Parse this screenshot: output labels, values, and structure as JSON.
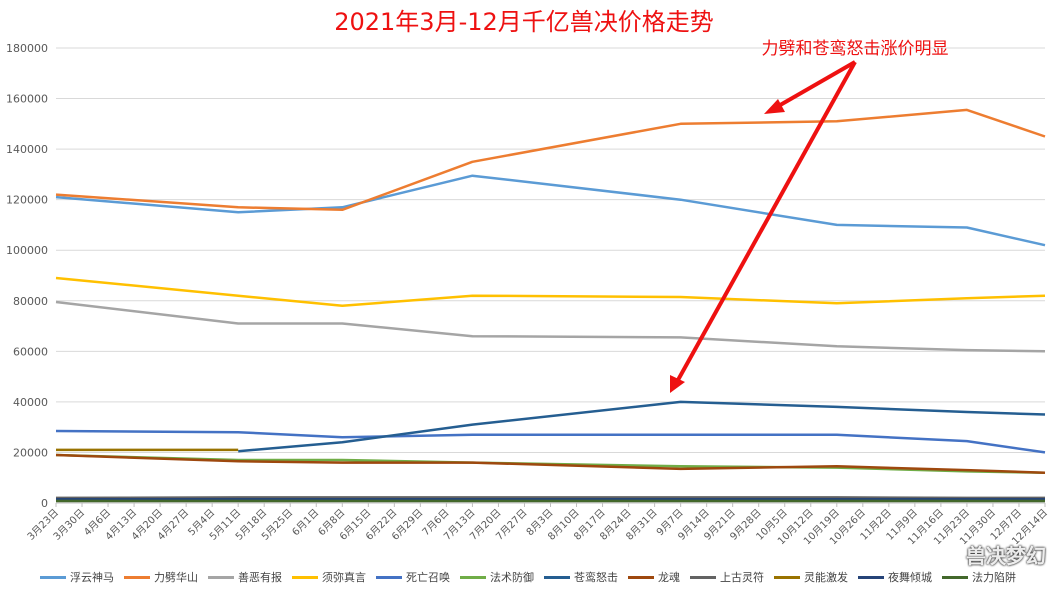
{
  "chart_data": {
    "type": "line",
    "title": "2021年3月-12月千亿兽决价格走势",
    "annotation": "力劈和苍鸾怒击涨价明显",
    "xlabel": "",
    "ylabel": "",
    "ylim": [
      0,
      180000
    ],
    "yticks": [
      0,
      20000,
      40000,
      60000,
      80000,
      100000,
      120000,
      140000,
      160000,
      180000
    ],
    "grid": true,
    "legend_position": "bottom",
    "categories": [
      "3月23日",
      "3月30日",
      "4月6日",
      "4月13日",
      "4月20日",
      "4月27日",
      "5月4日",
      "5月11日",
      "5月18日",
      "5月25日",
      "6月1日",
      "6月8日",
      "6月15日",
      "6月22日",
      "6月29日",
      "7月6日",
      "7月13日",
      "7月20日",
      "7月27日",
      "8月3日",
      "8月10日",
      "8月17日",
      "8月24日",
      "8月31日",
      "9月7日",
      "9月14日",
      "9月21日",
      "9月28日",
      "10月5日",
      "10月12日",
      "10月19日",
      "10月26日",
      "11月2日",
      "11月9日",
      "11月16日",
      "11月23日",
      "11月30日",
      "12月7日",
      "12月14日"
    ],
    "series": [
      {
        "name": "浮云神马",
        "color": "#5B9BD5",
        "values": [
          121000,
          null,
          null,
          null,
          null,
          null,
          null,
          115000,
          null,
          null,
          null,
          117000,
          null,
          null,
          null,
          null,
          129500,
          null,
          null,
          null,
          null,
          null,
          null,
          null,
          120000,
          null,
          null,
          null,
          null,
          null,
          110000,
          null,
          null,
          null,
          null,
          109000,
          null,
          null,
          102000
        ]
      },
      {
        "name": "力劈华山",
        "color": "#ED7D31",
        "values": [
          122000,
          null,
          null,
          null,
          null,
          null,
          null,
          117000,
          null,
          null,
          null,
          116000,
          null,
          null,
          null,
          null,
          135000,
          null,
          null,
          null,
          null,
          null,
          null,
          null,
          150000,
          null,
          null,
          null,
          null,
          null,
          151000,
          null,
          null,
          null,
          null,
          155500,
          null,
          null,
          145000
        ]
      },
      {
        "name": "善恶有报",
        "color": "#A5A5A5",
        "values": [
          79500,
          null,
          null,
          null,
          null,
          null,
          null,
          71000,
          null,
          null,
          null,
          71000,
          null,
          null,
          null,
          null,
          66000,
          null,
          null,
          null,
          null,
          null,
          null,
          null,
          65500,
          null,
          null,
          null,
          null,
          null,
          62000,
          null,
          null,
          null,
          null,
          60500,
          null,
          null,
          60000
        ]
      },
      {
        "name": "须弥真言",
        "color": "#FFC000",
        "values": [
          89000,
          null,
          null,
          null,
          null,
          null,
          null,
          82000,
          null,
          null,
          null,
          78000,
          null,
          null,
          null,
          null,
          82000,
          null,
          null,
          null,
          null,
          null,
          null,
          null,
          81500,
          null,
          null,
          null,
          null,
          null,
          79000,
          null,
          null,
          null,
          null,
          81000,
          null,
          null,
          82000
        ]
      },
      {
        "name": "死亡召唤",
        "color": "#4472C4",
        "values": [
          28500,
          null,
          null,
          null,
          null,
          null,
          null,
          28000,
          null,
          null,
          null,
          26000,
          null,
          null,
          null,
          null,
          27000,
          null,
          null,
          null,
          null,
          null,
          null,
          null,
          27000,
          null,
          null,
          null,
          null,
          null,
          27000,
          null,
          null,
          null,
          null,
          24500,
          null,
          null,
          20000
        ]
      },
      {
        "name": "法术防御",
        "color": "#70AD47",
        "values": [
          19000,
          null,
          null,
          null,
          null,
          null,
          null,
          17000,
          null,
          null,
          null,
          17000,
          null,
          null,
          null,
          null,
          16000,
          null,
          null,
          null,
          null,
          null,
          null,
          null,
          14500,
          null,
          null,
          null,
          null,
          null,
          14000,
          null,
          null,
          null,
          null,
          12500,
          null,
          null,
          12000
        ]
      },
      {
        "name": "苍鸾怒击",
        "color": "#255E91",
        "values": [
          null,
          null,
          null,
          null,
          null,
          null,
          null,
          20500,
          null,
          null,
          null,
          24000,
          null,
          null,
          null,
          null,
          31000,
          null,
          null,
          null,
          null,
          null,
          null,
          null,
          40000,
          null,
          null,
          null,
          null,
          null,
          38000,
          null,
          null,
          null,
          null,
          36000,
          null,
          null,
          35000
        ]
      },
      {
        "name": "龙魂",
        "color": "#9E480E",
        "values": [
          19000,
          null,
          null,
          null,
          null,
          null,
          null,
          16500,
          null,
          null,
          null,
          16000,
          null,
          null,
          null,
          null,
          16000,
          null,
          null,
          null,
          null,
          null,
          null,
          null,
          13500,
          null,
          null,
          null,
          null,
          null,
          14500,
          null,
          null,
          null,
          null,
          13000,
          null,
          null,
          12000
        ]
      },
      {
        "name": "上古灵符",
        "color": "#636363",
        "values": [
          2000,
          null,
          null,
          null,
          null,
          null,
          null,
          2200,
          null,
          null,
          null,
          2200,
          null,
          null,
          null,
          null,
          2200,
          null,
          null,
          null,
          null,
          null,
          null,
          null,
          2200,
          null,
          null,
          null,
          null,
          null,
          2200,
          null,
          null,
          null,
          null,
          2000,
          null,
          null,
          2000
        ]
      },
      {
        "name": "灵能激发",
        "color": "#997300",
        "values": [
          21000,
          null,
          null,
          null,
          null,
          null,
          null,
          21000,
          null,
          null,
          null,
          null,
          null,
          null,
          null,
          null,
          null,
          null,
          null,
          null,
          null,
          null,
          null,
          null,
          null,
          null,
          null,
          null,
          null,
          null,
          null,
          null,
          null,
          null,
          null,
          null,
          null,
          null,
          null
        ]
      },
      {
        "name": "夜舞倾城",
        "color": "#264478",
        "values": [
          1500,
          null,
          null,
          null,
          null,
          null,
          null,
          1500,
          null,
          null,
          null,
          1500,
          null,
          null,
          null,
          null,
          1500,
          null,
          null,
          null,
          null,
          null,
          null,
          null,
          1500,
          null,
          null,
          null,
          null,
          null,
          1500,
          null,
          null,
          null,
          null,
          1500,
          null,
          null,
          1500
        ]
      },
      {
        "name": "法力陷阱",
        "color": "#43682B",
        "values": [
          800,
          null,
          null,
          null,
          null,
          null,
          null,
          800,
          null,
          null,
          null,
          800,
          null,
          null,
          null,
          null,
          800,
          null,
          null,
          null,
          null,
          null,
          null,
          null,
          800,
          null,
          null,
          null,
          null,
          null,
          800,
          null,
          null,
          null,
          null,
          800,
          null,
          null,
          800
        ]
      }
    ]
  },
  "watermark": "兽决梦幻"
}
